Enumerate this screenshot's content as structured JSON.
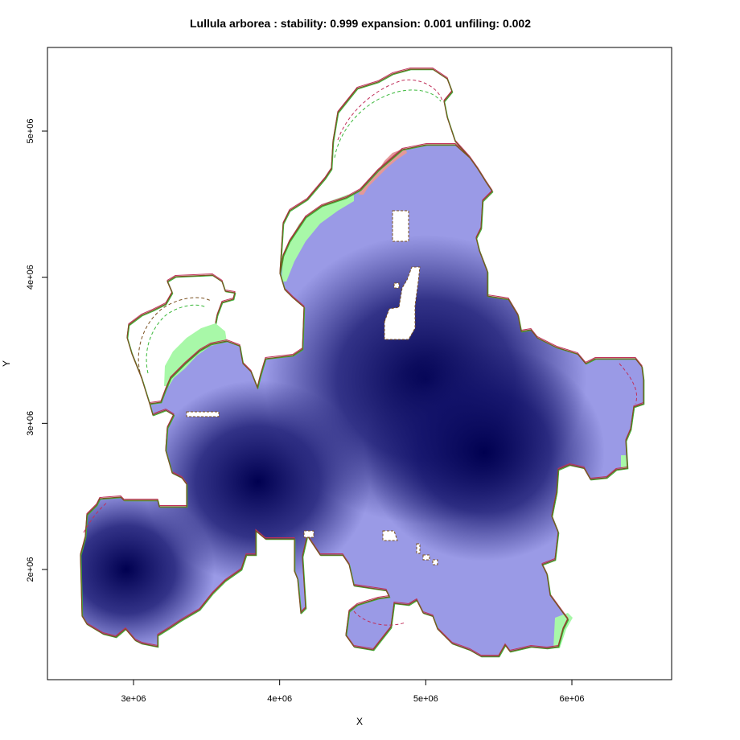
{
  "title": "Lullula arborea : stability: 0.999 expansion: 0.001 unfiling: 0.002",
  "chart_data": {
    "type": "heatmap",
    "xlabel": "X",
    "ylabel": "Y",
    "xlim": [
      2400000,
      6700000
    ],
    "ylim": [
      1300000,
      5600000
    ],
    "x_ticks": [
      3000000,
      4000000,
      5000000,
      6000000
    ],
    "x_tick_labels": [
      "3e+06",
      "4e+06",
      "5e+06",
      "6e+06"
    ],
    "y_ticks": [
      2000000,
      3000000,
      4000000,
      5000000
    ],
    "y_tick_labels": [
      "2e+06",
      "3e+06",
      "4e+06",
      "5e+06"
    ],
    "stats": {
      "stability": 0.999,
      "expansion": 0.001,
      "unfiling": 0.002
    },
    "density_hotspots": [
      {
        "x": 2950000,
        "y": 2000000
      },
      {
        "x": 3850000,
        "y": 2600000
      },
      {
        "x": 5000000,
        "y": 3300000
      },
      {
        "x": 5400000,
        "y": 2800000
      }
    ],
    "colors": {
      "density_high": "#000050",
      "density_low": "#a8a8ee",
      "expansion": "#a8f8a8",
      "loss": "#e49898",
      "outline_current": "#c0305a",
      "outline_future": "#38b838",
      "outline_combined": "#7a5020"
    }
  }
}
